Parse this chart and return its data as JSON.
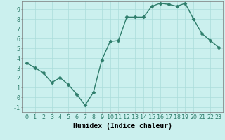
{
  "x": [
    0,
    1,
    2,
    3,
    4,
    5,
    6,
    7,
    8,
    9,
    10,
    11,
    12,
    13,
    14,
    15,
    16,
    17,
    18,
    19,
    20,
    21,
    22,
    23
  ],
  "y": [
    3.5,
    3.0,
    2.5,
    1.5,
    2.0,
    1.3,
    0.3,
    -0.8,
    0.5,
    3.8,
    5.7,
    5.8,
    8.2,
    8.2,
    8.2,
    9.3,
    9.6,
    9.5,
    9.3,
    9.6,
    8.0,
    6.5,
    5.8,
    5.1
  ],
  "line_color": "#2E7D6B",
  "marker": "D",
  "marker_size": 2.5,
  "bg_color": "#CBF0EE",
  "grid_color": "#AADDDA",
  "xlabel": "Humidex (Indice chaleur)",
  "xlim": [
    -0.5,
    23.5
  ],
  "ylim": [
    -1.5,
    9.8
  ],
  "xticks": [
    0,
    1,
    2,
    3,
    4,
    5,
    6,
    7,
    8,
    9,
    10,
    11,
    12,
    13,
    14,
    15,
    16,
    17,
    18,
    19,
    20,
    21,
    22,
    23
  ],
  "yticks": [
    -1,
    0,
    1,
    2,
    3,
    4,
    5,
    6,
    7,
    8,
    9
  ],
  "tick_fontsize": 6,
  "xlabel_fontsize": 7,
  "line_width": 1.0
}
